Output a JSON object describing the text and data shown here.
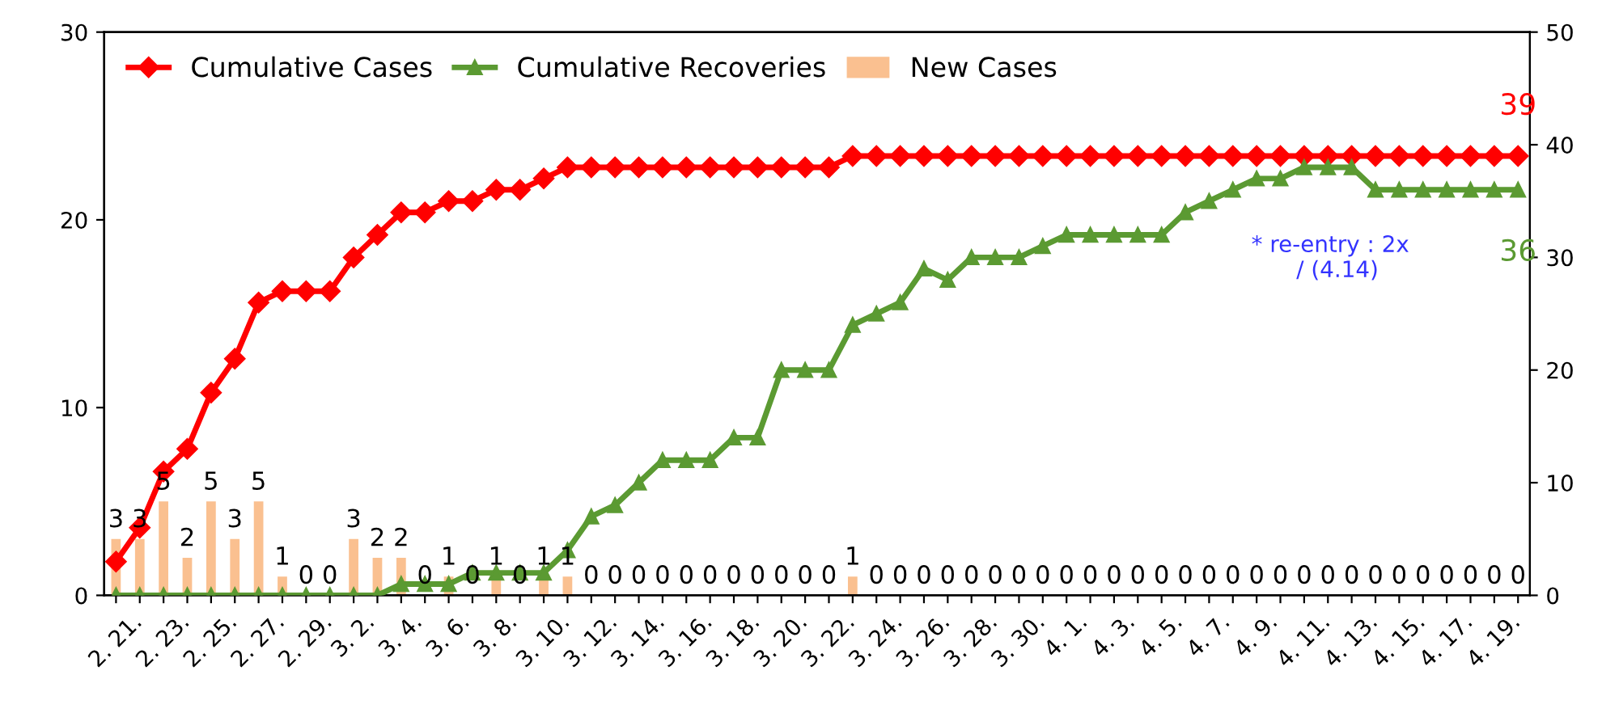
{
  "chart_data": {
    "type": "bar",
    "categories": [
      "2. 21.",
      null,
      "2. 23.",
      null,
      "2. 25.",
      null,
      "2. 27.",
      null,
      "2. 29.",
      null,
      "3. 2.",
      null,
      "3. 4.",
      null,
      "3. 6.",
      null,
      "3. 8.",
      null,
      "3. 10.",
      null,
      "3. 12.",
      null,
      "3. 14.",
      null,
      "3. 16.",
      null,
      "3. 18.",
      null,
      "3. 20.",
      null,
      "3. 22.",
      null,
      "3. 24.",
      null,
      "3. 26.",
      null,
      "3. 28.",
      null,
      "3. 30.",
      null,
      "4. 1.",
      null,
      "4. 3.",
      null,
      "4. 5.",
      null,
      "4. 7.",
      null,
      "4. 9.",
      null,
      "4. 11.",
      null,
      "4. 13.",
      null,
      "4. 15.",
      null,
      "4. 17.",
      null,
      "4. 19.",
      null
    ],
    "series": [
      {
        "name": "Cumulative Cases",
        "type": "line",
        "axis": "y2",
        "color": "#ff0000",
        "marker": "diamond",
        "values": [
          3,
          6,
          11,
          13,
          18,
          21,
          26,
          27,
          27,
          27,
          30,
          32,
          34,
          34,
          35,
          35,
          36,
          36,
          37,
          38,
          38,
          38,
          38,
          38,
          38,
          38,
          38,
          38,
          38,
          38,
          38,
          39,
          39,
          39,
          39,
          39,
          39,
          39,
          39,
          39,
          39,
          39,
          39,
          39,
          39,
          39,
          39,
          39,
          39,
          39,
          39,
          39,
          39,
          39,
          39,
          39,
          39,
          39,
          39,
          39
        ],
        "value_labels": [
          null,
          null,
          null,
          null,
          null,
          null,
          null,
          null,
          null,
          null,
          null,
          null,
          null,
          null,
          null,
          null,
          null,
          null,
          null,
          null,
          null,
          null,
          null,
          null,
          null,
          null,
          null,
          null,
          null,
          null,
          null,
          null,
          null,
          null,
          null,
          null,
          null,
          null,
          null,
          null,
          null,
          null,
          null,
          null,
          null,
          null,
          null,
          null,
          null,
          null,
          null,
          null,
          null,
          null,
          null,
          null,
          null,
          null,
          null,
          "39"
        ]
      },
      {
        "name": "Cumulative Recoveries",
        "type": "line",
        "axis": "y2",
        "color": "#5b9a32",
        "marker": "triangle",
        "values": [
          0,
          0,
          0,
          0,
          0,
          0,
          0,
          0,
          0,
          0,
          0,
          0,
          1,
          1,
          1,
          2,
          2,
          2,
          2,
          4,
          7,
          8,
          10,
          12,
          12,
          12,
          14,
          14,
          20,
          20,
          20,
          24,
          25,
          26,
          29,
          28,
          30,
          30,
          30,
          31,
          32,
          32,
          32,
          32,
          32,
          34,
          35,
          36,
          37,
          37,
          38,
          38,
          38,
          36,
          36,
          36,
          36,
          36,
          36,
          36
        ],
        "value_labels": [
          null,
          null,
          null,
          null,
          null,
          null,
          null,
          null,
          null,
          null,
          null,
          null,
          null,
          null,
          null,
          null,
          null,
          null,
          null,
          null,
          null,
          null,
          null,
          null,
          null,
          null,
          null,
          null,
          null,
          null,
          null,
          null,
          null,
          null,
          null,
          null,
          null,
          null,
          null,
          null,
          null,
          null,
          null,
          null,
          null,
          null,
          null,
          null,
          null,
          null,
          null,
          null,
          null,
          null,
          null,
          null,
          null,
          null,
          null,
          "36"
        ]
      },
      {
        "name": "New Cases",
        "color": "#fac090",
        "data_labels": true,
        "values": [
          3,
          3,
          5,
          2,
          5,
          3,
          5,
          1,
          0,
          0,
          3,
          2,
          2,
          0,
          1,
          0,
          1,
          0,
          1,
          1,
          0,
          0,
          0,
          0,
          0,
          0,
          0,
          0,
          0,
          0,
          0,
          1,
          0,
          0,
          0,
          0,
          0,
          0,
          0,
          0,
          0,
          0,
          0,
          0,
          0,
          0,
          0,
          0,
          0,
          0,
          0,
          0,
          0,
          0,
          0,
          0,
          0,
          0,
          0,
          0
        ]
      }
    ],
    "ylim": [
      0,
      30
    ],
    "yticks": [
      0,
      10,
      20,
      30
    ],
    "y2lim": [
      0,
      50
    ],
    "y2ticks": [
      0,
      10,
      20,
      30,
      40,
      50
    ],
    "annotations": [
      "* re-entry : 2x\n  / (4.14)"
    ],
    "legend": "top left",
    "grid": false
  }
}
